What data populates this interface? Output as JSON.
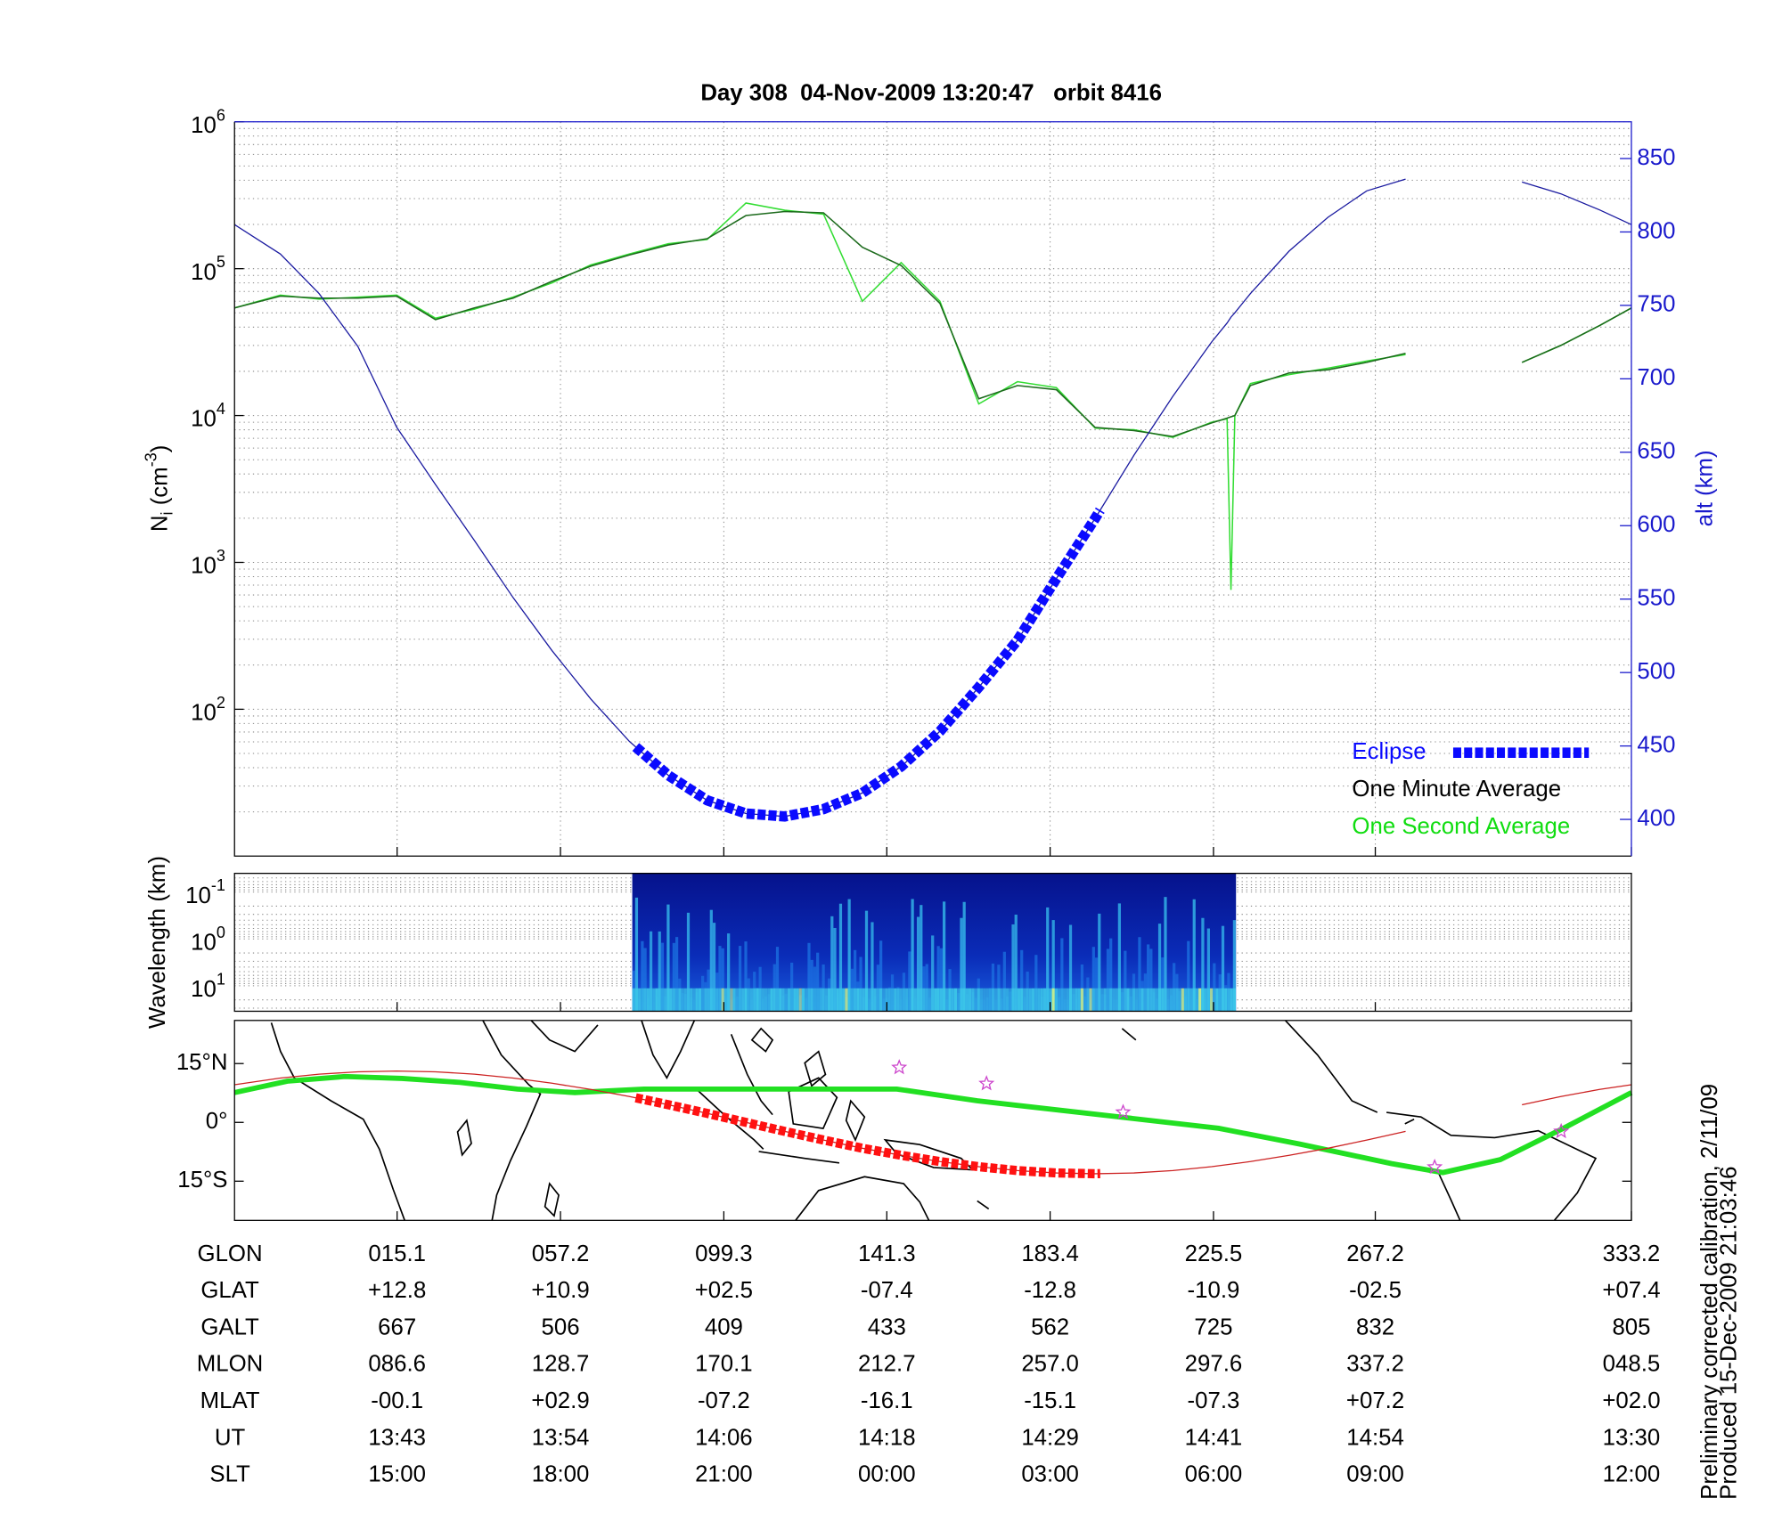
{
  "chart_data": [
    {
      "type": "line",
      "title": "Day 308  04-Nov-2009 13:20:47   orbit 8416",
      "ylabel_parts": [
        "N",
        "i",
        " (cm",
        "-3",
        ")"
      ],
      "y2label": "alt (km)",
      "log_y": true,
      "grid": true,
      "legend": "lower right",
      "xlim": [
        -26.8,
        333.2
      ],
      "xticks": [
        15.1,
        57.2,
        99.3,
        141.3,
        183.4,
        225.5,
        267.2,
        333.2
      ],
      "ylim": [
        10,
        1000000
      ],
      "yticks": [
        {
          "value": 100,
          "label": "10",
          "exponent": "2"
        },
        {
          "value": 1000,
          "label": "10",
          "exponent": "3"
        },
        {
          "value": 10000,
          "label": "10",
          "exponent": "4"
        },
        {
          "value": 100000,
          "label": "10",
          "exponent": "5"
        },
        {
          "value": 1000000,
          "label": "10",
          "exponent": "6"
        }
      ],
      "y2lim": [
        375,
        875
      ],
      "y2ticks": [
        400,
        450,
        500,
        550,
        600,
        650,
        700,
        750,
        800,
        850
      ],
      "y2color": "#1a1acc",
      "x": [
        -26.8,
        -15,
        -5,
        5,
        15,
        25,
        35,
        45,
        55,
        65,
        75,
        85,
        95,
        105,
        115,
        125,
        135,
        145,
        155,
        165,
        175,
        185,
        195,
        205,
        215,
        225,
        229,
        230,
        231,
        235,
        245,
        255,
        265,
        275,
        285,
        305,
        315,
        325,
        333.2
      ],
      "series": [
        {
          "name": "One Second Average",
          "color": "#33dd33",
          "label_color": "#11dd11",
          "values": [
            54000,
            66000,
            62000,
            64000,
            66000,
            46000,
            53000,
            64000,
            80000,
            106000,
            126000,
            148000,
            158000,
            280000,
            250000,
            235000,
            60000,
            110000,
            60000,
            12000,
            17000,
            15500,
            8200,
            8000,
            7100,
            9000,
            9500,
            650,
            10000,
            16500,
            19000,
            21000,
            23500,
            26000,
            null,
            23000,
            30000,
            41000,
            54000
          ]
        },
        {
          "name": "One Minute Average",
          "color": "#1d6b1d",
          "label_color": "#000000",
          "values": [
            54000,
            65000,
            63000,
            63000,
            65000,
            45000,
            54000,
            63000,
            82000,
            104000,
            124000,
            145000,
            160000,
            230000,
            245000,
            240000,
            140000,
            105000,
            58000,
            13000,
            16000,
            15000,
            8300,
            7900,
            7200,
            8900,
            9600,
            9800,
            10000,
            16000,
            19500,
            20500,
            23000,
            26500,
            null,
            23000,
            30000,
            41000,
            54000
          ]
        },
        {
          "axis": "y2",
          "color": "#1a1aa0",
          "values": [
            805,
            785,
            758,
            722,
            667,
            628,
            590,
            551,
            515,
            482,
            453,
            430,
            413,
            404,
            402,
            407,
            418,
            436,
            460,
            490,
            522,
            564,
            605,
            648,
            688,
            725,
            738,
            742,
            745,
            758,
            787,
            810,
            828,
            836,
            null,
            834,
            826,
            815,
            805
          ]
        }
      ],
      "eclipse": {
        "name": "Eclipse",
        "color": "#0a0aff",
        "range": [
          76.6,
          196.3
        ]
      }
    },
    {
      "type": "spectrogram",
      "ylabel": "Wavelength (km)",
      "log_y": true,
      "y_inverted": true,
      "grid": true,
      "xlim": [
        -26.8,
        333.2
      ],
      "xticks": [
        15.1,
        57.2,
        99.3,
        141.3,
        183.4,
        225.5,
        267.2,
        333.2
      ],
      "ylim": [
        0.04,
        35
      ],
      "yticks": [
        {
          "value": 0.1,
          "label": "10",
          "exponent": "-1"
        },
        {
          "value": 1,
          "label": "10",
          "exponent": "0"
        },
        {
          "value": 10,
          "label": "10",
          "exponent": "1"
        }
      ],
      "xrange": [
        75.7,
        231.3
      ]
    },
    {
      "type": "map",
      "xlabel": "GLON",
      "xlim": [
        -26.8,
        333.2
      ],
      "xticks": [
        {
          "value": 15.1,
          "label": "015.1"
        },
        {
          "value": 57.2,
          "label": "057.2"
        },
        {
          "value": 99.3,
          "label": "099.3"
        },
        {
          "value": 141.3,
          "label": "141.3"
        },
        {
          "value": 183.4,
          "label": "183.4"
        },
        {
          "value": 225.5,
          "label": "225.5"
        },
        {
          "value": 267.2,
          "label": "267.2"
        },
        {
          "value": 333.2,
          "label": "333.2"
        }
      ],
      "ylim": [
        -25,
        26
      ],
      "yticks": [
        {
          "value": 15,
          "label": "15°N"
        },
        {
          "value": 0,
          "label": "0°"
        },
        {
          "value": -15,
          "label": "15°S"
        }
      ],
      "series": [
        {
          "color": "#22e022",
          "x": [
            -26.8,
            -13.2,
            1.6,
            16.4,
            31.3,
            46.1,
            60.9,
            78.7,
            105.3,
            143.9,
            164.6,
            200.2,
            226.8,
            247.6,
            271.3,
            284.6,
            299.4,
            315.7,
            333.2
          ],
          "values": [
            7.6,
            10.5,
            11.7,
            11.2,
            10.2,
            8.5,
            7.6,
            8.5,
            8.5,
            8.5,
            5.5,
            1.5,
            -1.5,
            -5.5,
            -10.5,
            -12.8,
            -9.5,
            -1.5,
            7.6
          ]
        },
        {
          "color": "#cc2222",
          "x": [
            -26.8,
            -15,
            -5,
            5,
            15,
            25,
            35,
            45,
            55,
            65,
            75,
            85,
            95,
            105,
            115,
            125,
            135,
            145,
            155,
            165,
            175,
            185,
            195,
            205,
            215,
            225,
            235,
            245,
            255,
            265,
            275,
            285,
            305,
            315,
            325,
            333.2
          ],
          "values": [
            9.6,
            11.3,
            12.3,
            12.9,
            13.1,
            12.9,
            12.3,
            11.3,
            10.0,
            8.4,
            6.6,
            4.5,
            2.3,
            0.0,
            -2.3,
            -4.5,
            -6.6,
            -8.4,
            -10.0,
            -11.3,
            -12.3,
            -12.9,
            -13.1,
            -12.9,
            -12.3,
            -11.3,
            -10.0,
            -8.4,
            -6.6,
            -4.5,
            -2.3,
            null,
            4.5,
            6.6,
            8.4,
            9.6
          ]
        }
      ],
      "eclipse": {
        "color": "#ff1111",
        "range": [
          76.6,
          196.3
        ]
      },
      "markers": {
        "color": "#cc44cc",
        "x": [
          144.5,
          167,
          202.2,
          282.5,
          315.1
        ],
        "y": [
          14.0,
          9.9,
          2.6,
          -11.4,
          -2.3
        ]
      }
    }
  ],
  "table": {
    "rows": [
      {
        "label": "GLAT",
        "cells": [
          "+12.8",
          "+10.9",
          "+02.5",
          "-07.4",
          "-12.8",
          "-10.9",
          "-02.5",
          "+07.4"
        ]
      },
      {
        "label": "GALT",
        "cells": [
          "667",
          "506",
          "409",
          "433",
          "562",
          "725",
          "832",
          "805"
        ]
      },
      {
        "label": "MLON",
        "cells": [
          "086.6",
          "128.7",
          "170.1",
          "212.7",
          "257.0",
          "297.6",
          "337.2",
          "048.5"
        ]
      },
      {
        "label": "MLAT",
        "cells": [
          "-00.1",
          "+02.9",
          "-07.2",
          "-16.1",
          "-15.1",
          "-07.3",
          "+07.2",
          "+02.0"
        ]
      },
      {
        "label": "UT",
        "cells": [
          "13:43",
          "13:54",
          "14:06",
          "14:18",
          "14:29",
          "14:41",
          "14:54",
          "13:30"
        ]
      },
      {
        "label": "SLT",
        "cells": [
          "15:00",
          "18:00",
          "21:00",
          "00:00",
          "03:00",
          "06:00",
          "09:00",
          "12:00"
        ]
      }
    ]
  },
  "notes": [
    "Preliminary corrected calibration, 2/11/09",
    "Produced 15-Dec-2009 21:03:46"
  ]
}
